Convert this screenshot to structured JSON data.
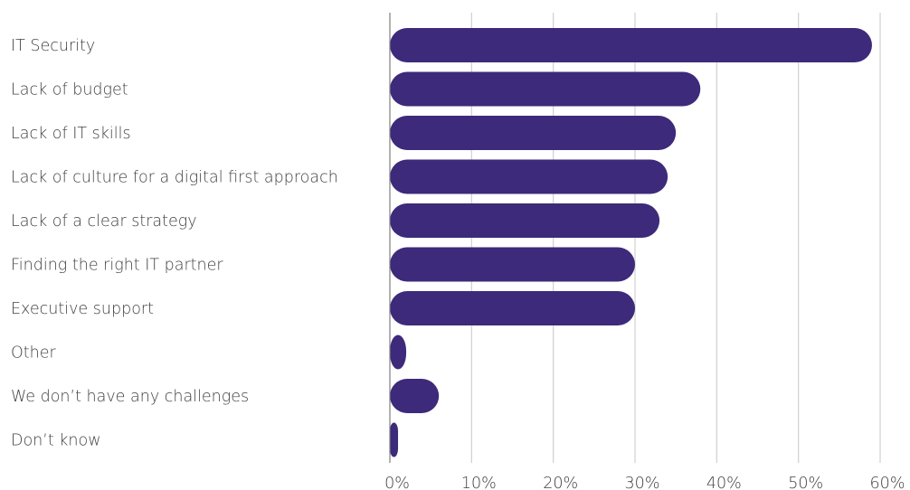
{
  "chart_data": {
    "type": "bar",
    "orientation": "horizontal",
    "categories": [
      "IT Security",
      "Lack of budget",
      "Lack of IT skills",
      "Lack of culture for a digital first approach",
      "Lack of a clear strategy",
      "Finding the right IT partner",
      "Executive support",
      "Other",
      "We don’t have any challenges",
      "Don’t know"
    ],
    "values": [
      59,
      38,
      35,
      34,
      33,
      30,
      30,
      2,
      6,
      1
    ],
    "unit": "%",
    "xlim": [
      0,
      60
    ],
    "x_ticks": [
      "0%",
      "10%",
      "20%",
      "30%",
      "40%",
      "50%",
      "60%"
    ],
    "title": "",
    "xlabel": "",
    "ylabel": "",
    "grid": true,
    "legend": "none",
    "colors": {
      "bar": "#3d2a7a",
      "grid": "#d0d0d0",
      "axis": "#7f7f7f",
      "text": "#404040"
    }
  }
}
